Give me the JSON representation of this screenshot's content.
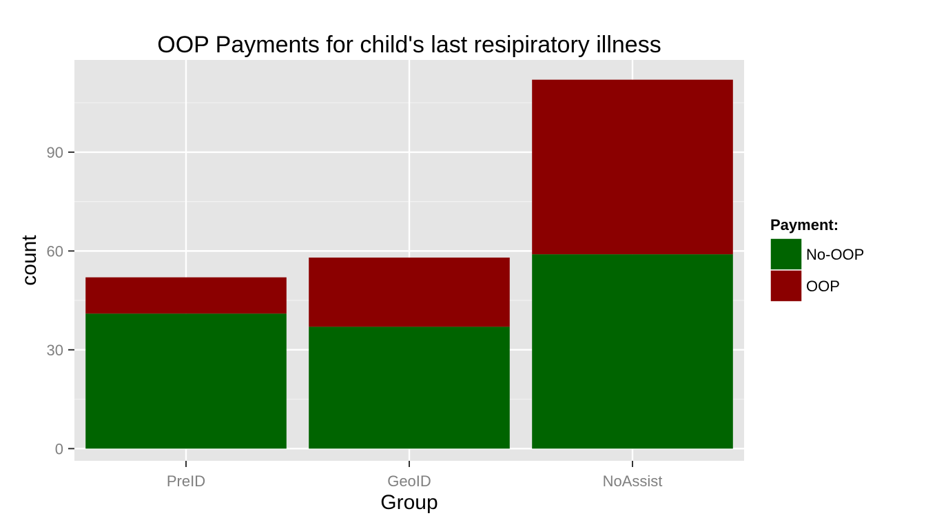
{
  "chart_data": {
    "type": "bar",
    "stacked": true,
    "title": "OOP Payments for child's last resipiratory illness",
    "xlabel": "Group",
    "ylabel": "count",
    "categories": [
      "PreID",
      "GeoID",
      "NoAssist"
    ],
    "series": [
      {
        "name": "No-OOP",
        "color": "#006400",
        "values": [
          41,
          37,
          59
        ]
      },
      {
        "name": "OOP",
        "color": "#8b0000",
        "values": [
          11,
          21,
          53
        ]
      }
    ],
    "ylim": [
      -3.7,
      118
    ],
    "yticks": [
      0,
      30,
      60,
      90
    ],
    "grid": true,
    "legend": {
      "title": "Payment:",
      "position": "right"
    },
    "colors": {
      "panel_background": "#e5e5e5",
      "grid_major": "#ffffff",
      "grid_minor": "#f2f2f2",
      "tick_text": "#7f7f7f"
    }
  }
}
